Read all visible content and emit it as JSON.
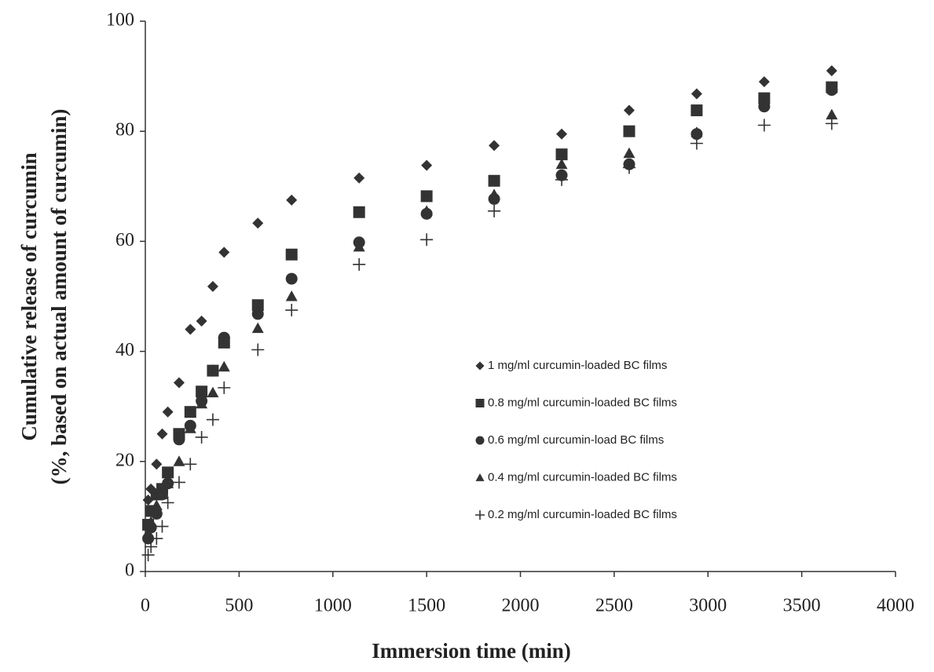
{
  "chart_data": {
    "type": "scatter",
    "xlabel": "Immersion time (min)",
    "ylabel": [
      "Cumulative release of curcumin",
      "(%, based on actual amount of curcumin)"
    ],
    "x": [
      15,
      30,
      60,
      90,
      120,
      180,
      240,
      300,
      360,
      420,
      600,
      780,
      1140,
      1500,
      1860,
      2220,
      2580,
      2940,
      3300,
      3660
    ],
    "series": [
      {
        "name": "1 mg/ml curcumin-loaded  BC films",
        "marker": "diamond",
        "color": "#333333",
        "values": [
          13,
          15,
          19.5,
          25,
          29,
          34.3,
          44,
          45.5,
          51.8,
          58,
          63.3,
          67.5,
          71.5,
          73.8,
          77.4,
          79.5,
          83.8,
          86.8,
          89,
          91
        ]
      },
      {
        "name": "0.8 mg/ml curcumin-loaded  BC films",
        "marker": "square",
        "color": "#333333",
        "values": [
          8.5,
          11,
          14,
          15,
          18,
          25,
          29,
          32.7,
          36.5,
          41.6,
          48.4,
          57.6,
          65.3,
          68.2,
          71,
          75.8,
          80,
          83.8,
          86,
          88
        ]
      },
      {
        "name": "0.6 mg/ml curcumin-load  BC films",
        "marker": "circle",
        "color": "#333333",
        "values": [
          6,
          8,
          10.5,
          14,
          16,
          24,
          26.5,
          31,
          36.5,
          42.5,
          46.8,
          53.2,
          59.8,
          65,
          67.7,
          72,
          74,
          79.5,
          84.5,
          87.5
        ]
      },
      {
        "name": "0.4 mg/ml curcumin-loaded  BC films",
        "marker": "triangle",
        "color": "#333333",
        "values": [
          7,
          9,
          12,
          14,
          16,
          20,
          26,
          30.5,
          32.5,
          37.2,
          44.2,
          50,
          59,
          65.5,
          68.5,
          74,
          76,
          79.8,
          85,
          83
        ]
      },
      {
        "name": "0.2 mg/ml curcumin-loaded  BC films",
        "marker": "plus",
        "color": "#333333",
        "values": [
          3,
          4.5,
          6,
          8.2,
          12.5,
          16.2,
          19.5,
          24.4,
          27.6,
          33.4,
          40.3,
          47.5,
          55.8,
          60.3,
          65.5,
          71.2,
          73.4,
          77.8,
          81.1,
          81.4
        ]
      }
    ],
    "xlim": [
      0,
      4000
    ],
    "xticks": [
      0,
      500,
      1000,
      1500,
      2000,
      2500,
      3000,
      3500,
      4000
    ],
    "ylim": [
      0,
      100
    ],
    "yticks": [
      0,
      20,
      40,
      60,
      80,
      100
    ]
  }
}
